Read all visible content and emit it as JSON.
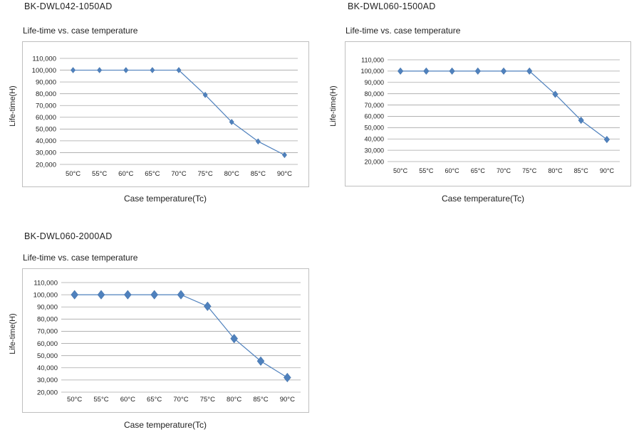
{
  "chart_data": [
    {
      "type": "line",
      "model": "BK-DWL042-1050AD",
      "title": "Life-time vs. case temperature",
      "xlabel": "Case temperature(Tc)",
      "ylabel": "Life-time(H)",
      "categories": [
        "50°C",
        "55°C",
        "60°C",
        "65°C",
        "70°C",
        "75°C",
        "80°C",
        "85°C",
        "90°C"
      ],
      "yticks": [
        "20,000",
        "30,000",
        "40,000",
        "50,000",
        "60,000",
        "70,000",
        "80,000",
        "90,000",
        "100,000",
        "110,000"
      ],
      "ylim": [
        20000,
        110000
      ],
      "grid": true,
      "series": [
        {
          "name": "Life-time",
          "values": [
            100000,
            100000,
            100000,
            100000,
            100000,
            79000,
            56000,
            39500,
            28000
          ]
        }
      ],
      "line_color": "#4f81bd"
    },
    {
      "type": "line",
      "model": "BK-DWL060-1500AD",
      "title": "Life-time vs. case temperature",
      "xlabel": "Case temperature(Tc)",
      "ylabel": "Life-time(H)",
      "categories": [
        "50°C",
        "55°C",
        "60°C",
        "65°C",
        "70°C",
        "75°C",
        "80°C",
        "85°C",
        "90°C"
      ],
      "yticks": [
        "20,000",
        "30,000",
        "40,000",
        "50,000",
        "60,000",
        "70,000",
        "80,000",
        "90,000",
        "100,000",
        "110,000"
      ],
      "ylim": [
        20000,
        110000
      ],
      "grid": true,
      "series": [
        {
          "name": "Life-time",
          "values": [
            100000,
            100000,
            100000,
            100000,
            100000,
            100000,
            79500,
            56500,
            39500
          ]
        }
      ],
      "line_color": "#4f81bd"
    },
    {
      "type": "line",
      "model": "BK-DWL060-2000AD",
      "title": "Life-time vs. case temperature",
      "xlabel": "Case temperature(Tc)",
      "ylabel": "Life-time(H)",
      "categories": [
        "50°C",
        "55°C",
        "60°C",
        "65°C",
        "70°C",
        "75°C",
        "80°C",
        "85°C",
        "90°C"
      ],
      "yticks": [
        "20,000",
        "30,000",
        "40,000",
        "50,000",
        "60,000",
        "70,000",
        "80,000",
        "90,000",
        "100,000",
        "110,000"
      ],
      "ylim": [
        20000,
        110000
      ],
      "grid": true,
      "series": [
        {
          "name": "Life-time",
          "values": [
            100000,
            100000,
            100000,
            100000,
            100000,
            90500,
            64000,
            45500,
            32000
          ]
        }
      ],
      "line_color": "#4f81bd"
    }
  ]
}
